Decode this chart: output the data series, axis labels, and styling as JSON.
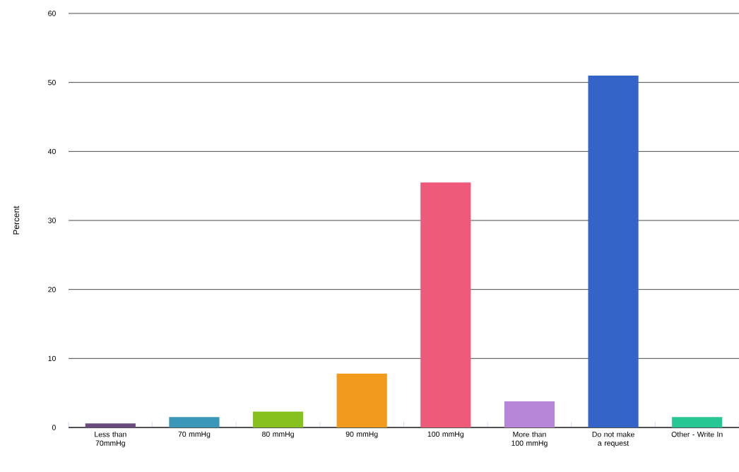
{
  "chart_data": {
    "type": "bar",
    "ylabel": "Percent",
    "categories": [
      "Less than 70mmHg",
      "70 mmHg",
      "80 mmHg",
      "90 mmHg",
      "100 mmHg",
      "More than 100 mmHg",
      "Do not make a request",
      "Other - Write In"
    ],
    "values": [
      0.6,
      1.5,
      2.3,
      7.8,
      35.5,
      3.8,
      51,
      1.5
    ],
    "colors": [
      "#6b4a7e",
      "#3a97b8",
      "#86c120",
      "#f29a1b",
      "#ee5a79",
      "#b687d8",
      "#3464c8",
      "#27c794"
    ],
    "ylim": [
      0,
      60
    ],
    "yticks": [
      0,
      10,
      20,
      30,
      40,
      50,
      60
    ],
    "grid": "y"
  }
}
